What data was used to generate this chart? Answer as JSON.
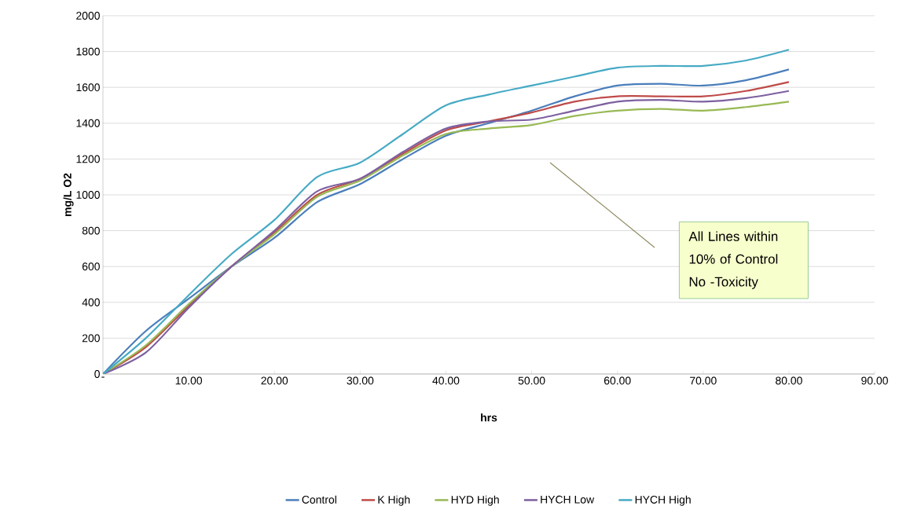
{
  "chart_data": {
    "type": "line",
    "xlabel": "hrs",
    "ylabel": "mg/L O2",
    "x": [
      0,
      5,
      10,
      15,
      20,
      25,
      30,
      35,
      40,
      45,
      50,
      55,
      60,
      65,
      70,
      75,
      80
    ],
    "series": [
      {
        "name": "Control",
        "color": "#4a7ebb",
        "values": [
          0,
          240,
          420,
          600,
          760,
          960,
          1060,
          1200,
          1330,
          1400,
          1470,
          1550,
          1610,
          1620,
          1610,
          1640,
          1700
        ]
      },
      {
        "name": "K High",
        "color": "#be4b48",
        "values": [
          0,
          150,
          380,
          600,
          790,
          1000,
          1090,
          1230,
          1360,
          1410,
          1460,
          1520,
          1550,
          1550,
          1550,
          1580,
          1630
        ]
      },
      {
        "name": "HYD High",
        "color": "#98b954",
        "values": [
          0,
          160,
          390,
          600,
          780,
          990,
          1080,
          1220,
          1340,
          1370,
          1390,
          1440,
          1470,
          1480,
          1470,
          1490,
          1520
        ]
      },
      {
        "name": "HYCH Low",
        "color": "#7d60a0",
        "values": [
          0,
          120,
          370,
          600,
          800,
          1020,
          1090,
          1240,
          1370,
          1410,
          1420,
          1470,
          1520,
          1530,
          1520,
          1540,
          1580
        ]
      },
      {
        "name": "HYCH High",
        "color": "#46aac5",
        "values": [
          0,
          200,
          440,
          670,
          860,
          1100,
          1180,
          1340,
          1500,
          1560,
          1610,
          1660,
          1710,
          1720,
          1720,
          1750,
          1810
        ]
      }
    ],
    "xlim": [
      0,
      90
    ],
    "xticks": [
      {
        "value": 0,
        "label": "-"
      },
      {
        "value": 10,
        "label": "10.00"
      },
      {
        "value": 20,
        "label": "20.00"
      },
      {
        "value": 30,
        "label": "30.00"
      },
      {
        "value": 40,
        "label": "40.00"
      },
      {
        "value": 50,
        "label": "50.00"
      },
      {
        "value": 60,
        "label": "60.00"
      },
      {
        "value": 70,
        "label": "70.00"
      },
      {
        "value": 80,
        "label": "80.00"
      },
      {
        "value": 90,
        "label": "90.00"
      }
    ],
    "ylim": [
      0,
      2000
    ],
    "yticks": [
      0,
      200,
      400,
      600,
      800,
      1000,
      1200,
      1400,
      1600,
      1800,
      2000
    ],
    "grid": "y",
    "legend": "bottom",
    "marker": "none",
    "line_style": "solid",
    "annotations": [
      "All Lines within  10% of Control No -Toxicity"
    ]
  }
}
